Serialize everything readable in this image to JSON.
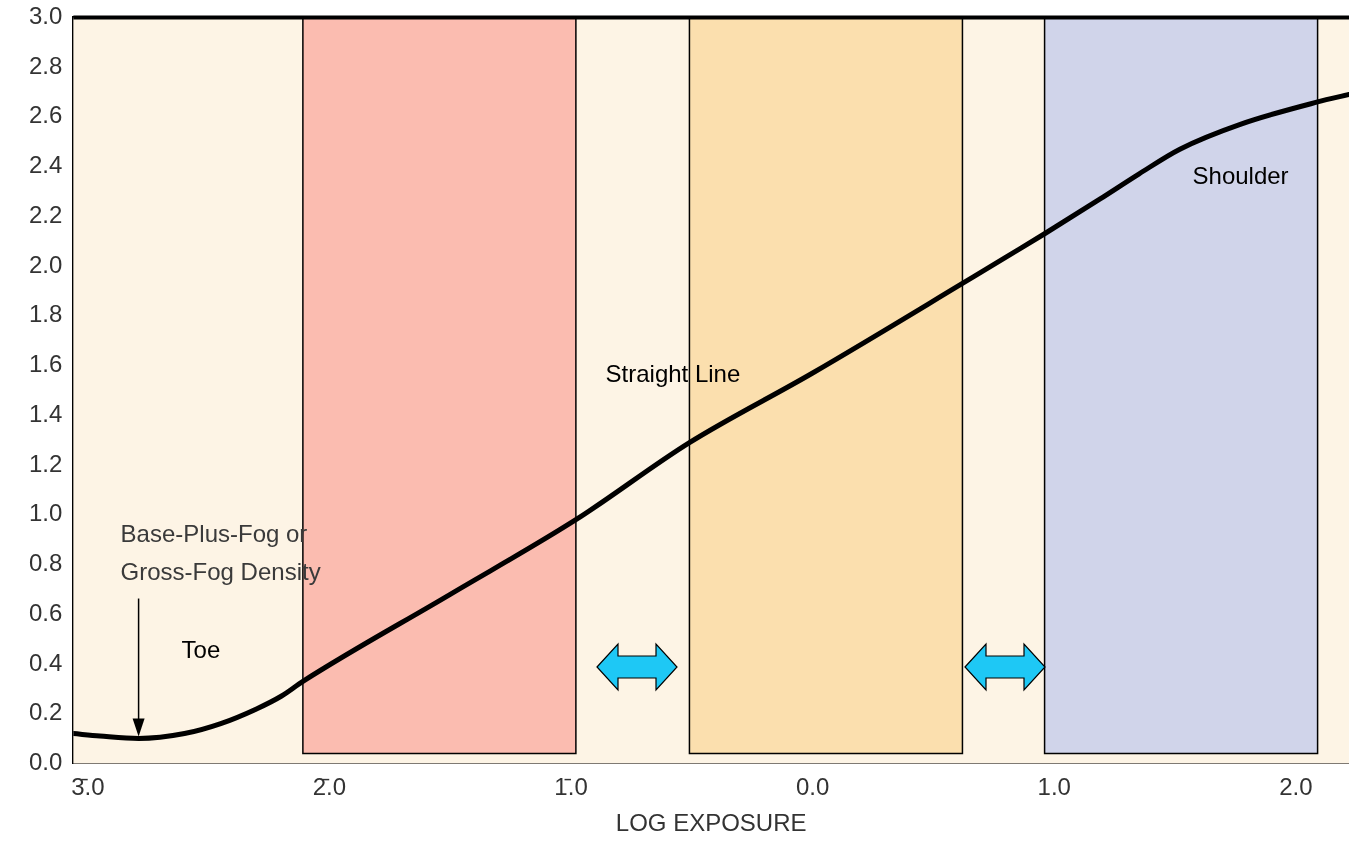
{
  "chart_data": {
    "type": "line",
    "xlabel": "LOG EXPOSURE",
    "x": [
      -3.06,
      -2.95,
      -2.79,
      -2.6,
      -2.45,
      -2.3,
      -2.2,
      -2.11,
      -1.5,
      -0.98,
      -0.51,
      0.0,
      0.62,
      0.96,
      1.19,
      1.35,
      1.52,
      1.77,
      2.09,
      2.22
    ],
    "series": [
      {
        "color": "#000000",
        "values": [
          0.12,
          0.11,
          0.1,
          0.12,
          0.16,
          0.22,
          0.27,
          0.33,
          0.68,
          0.98,
          1.29,
          1.57,
          1.93,
          2.13,
          2.27,
          2.37,
          2.47,
          2.57,
          2.66,
          2.69
        ]
      }
    ],
    "xlim": [
      -3.06,
      2.22
    ],
    "xticks": [
      {
        "value": -3,
        "label": "3̄.0"
      },
      {
        "value": -2,
        "label": "2̄.0"
      },
      {
        "value": -1,
        "label": "1̄.0"
      },
      {
        "value": 0,
        "label": "0.0"
      },
      {
        "value": 1,
        "label": "1.0"
      },
      {
        "value": 2,
        "label": "2.0"
      }
    ],
    "ylim": [
      0,
      3
    ],
    "yticks": [
      {
        "value": 0,
        "label": "0.0"
      },
      {
        "value": 0.2,
        "label": "0.2"
      },
      {
        "value": 0.4,
        "label": "0.4"
      },
      {
        "value": 0.6,
        "label": "0.6"
      },
      {
        "value": 0.8,
        "label": "0.8"
      },
      {
        "value": 1,
        "label": "1.0"
      },
      {
        "value": 1.2,
        "label": "1.2"
      },
      {
        "value": 1.4,
        "label": "1.4"
      },
      {
        "value": 1.6,
        "label": "1.6"
      },
      {
        "value": 1.8,
        "label": "1.8"
      },
      {
        "value": 2,
        "label": "2.0"
      },
      {
        "value": 2.2,
        "label": "2.2"
      },
      {
        "value": 2.4,
        "label": "2.4"
      },
      {
        "value": 2.6,
        "label": "2.6"
      },
      {
        "value": 2.8,
        "label": "2.8"
      },
      {
        "value": 3,
        "label": "3.0"
      }
    ],
    "bands": [
      {
        "axis": "x",
        "from": -2.11,
        "to": -0.98,
        "color": "#fbbcb0"
      },
      {
        "axis": "x",
        "from": -0.51,
        "to": 0.62,
        "color": "#fbdfae"
      },
      {
        "axis": "x",
        "from": 0.96,
        "to": 2.09,
        "color": "#d0d4ea"
      }
    ],
    "annotations": [
      {
        "text": "Base-Plus-Fog or Gross-Fog Density",
        "x": -2.79,
        "y": 0.1
      },
      "Toe",
      "Straight Line",
      "Shoulder"
    ],
    "grid": false,
    "legend": false,
    "marker": "none",
    "line_style": "solid"
  }
}
